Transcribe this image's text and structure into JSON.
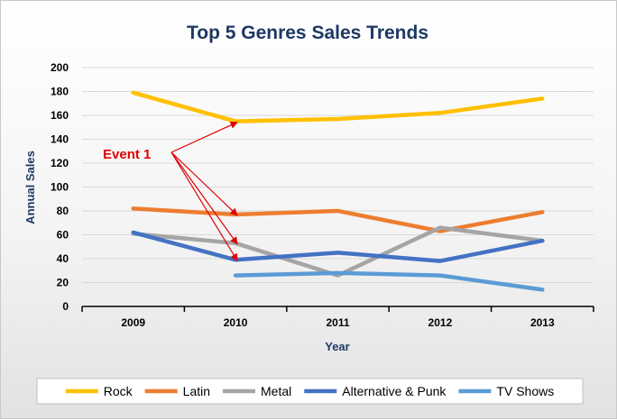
{
  "chart_data": {
    "type": "line",
    "title": "Top 5 Genres Sales Trends",
    "xlabel": "Year",
    "ylabel": "Annual Sales",
    "categories": [
      "2009",
      "2010",
      "2011",
      "2012",
      "2013"
    ],
    "ylim": [
      0,
      200
    ],
    "yticks": [
      0,
      20,
      40,
      60,
      80,
      100,
      120,
      140,
      160,
      180,
      200
    ],
    "grid": true,
    "legend_position": "bottom",
    "series": [
      {
        "name": "Rock",
        "color": "#ffc000",
        "values": [
          179,
          155,
          157,
          162,
          174
        ]
      },
      {
        "name": "Latin",
        "color": "#ed7d31",
        "values": [
          82,
          77,
          80,
          63,
          79
        ]
      },
      {
        "name": "Metal",
        "color": "#a5a5a5",
        "values": [
          61,
          53,
          26,
          66,
          55
        ]
      },
      {
        "name": "Alternative & Punk",
        "color": "#4472c4",
        "values": [
          62,
          39,
          45,
          38,
          55
        ]
      },
      {
        "name": "TV Shows",
        "color": "#5b9bd5",
        "values": [
          null,
          26,
          28,
          26,
          14
        ]
      }
    ],
    "annotations": [
      {
        "text": "Event 1",
        "color": "#e00000",
        "points_to": [
          {
            "x": "2010",
            "y": 155
          },
          {
            "x": "2010",
            "y": 77
          },
          {
            "x": "2010",
            "y": 53
          },
          {
            "x": "2010",
            "y": 39
          }
        ]
      }
    ]
  }
}
